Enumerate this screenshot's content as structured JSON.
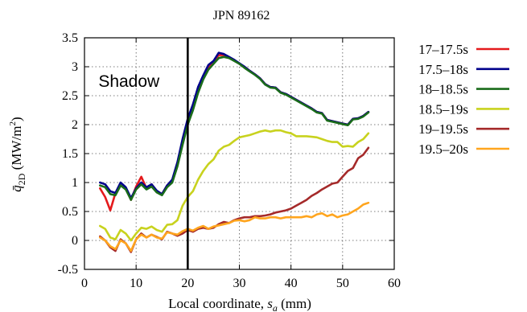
{
  "chart_data": {
    "type": "line",
    "title": "JPN 89162",
    "xlabel": "Local coordinate, s_a (mm)",
    "xlabel_parts": {
      "main": "Local coordinate, ",
      "var": "s",
      "sub": "a",
      "unit": " (mm)"
    },
    "ylabel": "q̄_2D (MW/m²)",
    "ylabel_parts": {
      "var": "q̄",
      "sub": "2D",
      "unit_open": " (MW/m",
      "sup": "2",
      "unit_close": ")"
    },
    "xlim": [
      0,
      60
    ],
    "ylim": [
      -0.5,
      3.5
    ],
    "xticks": [
      "0",
      "10",
      "20",
      "30",
      "40",
      "50",
      "60"
    ],
    "yticks": [
      "-0.5",
      "0",
      "0.5",
      "1",
      "1.5",
      "2",
      "2.5",
      "3",
      "3.5"
    ],
    "grid": true,
    "legend_position": "right, outside",
    "annotations": [
      {
        "text": "Shadow",
        "x": 2.7,
        "y": 2.75
      }
    ],
    "vlines": [
      {
        "x": 20,
        "color": "#000000"
      }
    ],
    "series": [
      {
        "name": "17–17.5s",
        "color": "#e41a1c",
        "x": [
          3,
          4,
          5,
          6,
          7,
          8,
          9,
          10,
          11,
          12,
          13,
          14,
          15,
          16,
          17,
          18,
          19,
          20,
          21,
          22,
          23,
          24,
          25,
          26,
          27,
          28,
          29,
          30,
          31,
          32,
          33,
          34,
          35,
          36,
          37,
          38,
          39,
          40,
          41,
          42,
          43,
          44,
          45,
          46,
          47,
          48,
          49,
          50,
          51,
          52,
          53,
          54,
          55
        ],
        "y": [
          0.9,
          0.75,
          0.52,
          0.82,
          0.95,
          0.9,
          0.7,
          0.93,
          1.1,
          0.9,
          0.97,
          0.85,
          0.8,
          0.95,
          1.02,
          1.3,
          1.7,
          2.05,
          2.3,
          2.6,
          2.8,
          3.0,
          3.1,
          3.2,
          3.2,
          3.16,
          3.12,
          3.05,
          3.0,
          2.93,
          2.87,
          2.8,
          2.7,
          2.65,
          2.64,
          2.56,
          2.53,
          2.48,
          2.43,
          2.38,
          2.33,
          2.28,
          2.22,
          2.2,
          2.08,
          2.06,
          2.04,
          2.02,
          2.0,
          2.1,
          2.11,
          2.15,
          2.22
        ]
      },
      {
        "name": "17.5–18s",
        "color": "#00008b",
        "x": [
          3,
          4,
          5,
          6,
          7,
          8,
          9,
          10,
          11,
          12,
          13,
          14,
          15,
          16,
          17,
          18,
          19,
          20,
          21,
          22,
          23,
          24,
          25,
          26,
          27,
          28,
          29,
          30,
          31,
          32,
          33,
          34,
          35,
          36,
          37,
          38,
          39,
          40,
          41,
          42,
          43,
          44,
          45,
          46,
          47,
          48,
          49,
          50,
          51,
          52,
          53,
          54,
          55
        ],
        "y": [
          1.0,
          0.97,
          0.85,
          0.82,
          1.0,
          0.92,
          0.73,
          0.9,
          1.0,
          0.92,
          0.97,
          0.86,
          0.8,
          0.95,
          1.05,
          1.35,
          1.75,
          2.1,
          2.35,
          2.65,
          2.85,
          3.03,
          3.1,
          3.24,
          3.22,
          3.17,
          3.12,
          3.06,
          3.0,
          2.93,
          2.87,
          2.8,
          2.7,
          2.65,
          2.64,
          2.56,
          2.53,
          2.48,
          2.43,
          2.38,
          2.33,
          2.28,
          2.22,
          2.2,
          2.08,
          2.06,
          2.04,
          2.02,
          2.0,
          2.1,
          2.11,
          2.15,
          2.22
        ]
      },
      {
        "name": "18–18.5s",
        "color": "#1a6b1a",
        "x": [
          3,
          4,
          5,
          6,
          7,
          8,
          9,
          10,
          11,
          12,
          13,
          14,
          15,
          16,
          17,
          18,
          19,
          20,
          21,
          22,
          23,
          24,
          25,
          26,
          27,
          28,
          29,
          30,
          31,
          32,
          33,
          34,
          35,
          36,
          37,
          38,
          39,
          40,
          41,
          42,
          43,
          44,
          45,
          46,
          47,
          48,
          49,
          50,
          51,
          52,
          53,
          54,
          55
        ],
        "y": [
          0.95,
          0.92,
          0.8,
          0.78,
          0.95,
          0.88,
          0.7,
          0.88,
          0.97,
          0.88,
          0.93,
          0.83,
          0.78,
          0.92,
          1.0,
          1.28,
          1.65,
          2.0,
          2.25,
          2.55,
          2.78,
          2.95,
          3.05,
          3.15,
          3.17,
          3.15,
          3.1,
          3.05,
          2.98,
          2.92,
          2.86,
          2.79,
          2.69,
          2.64,
          2.63,
          2.55,
          2.52,
          2.47,
          2.42,
          2.37,
          2.32,
          2.27,
          2.21,
          2.19,
          2.07,
          2.05,
          2.03,
          2.01,
          1.99,
          2.09,
          2.1,
          2.14,
          2.21
        ]
      },
      {
        "name": "18.5–19s",
        "color": "#c8d21e",
        "x": [
          3,
          4,
          5,
          6,
          7,
          8,
          9,
          10,
          11,
          12,
          13,
          14,
          15,
          16,
          17,
          18,
          19,
          20,
          21,
          22,
          23,
          24,
          25,
          26,
          27,
          28,
          29,
          30,
          31,
          32,
          33,
          34,
          35,
          36,
          37,
          38,
          39,
          40,
          41,
          42,
          43,
          44,
          45,
          46,
          47,
          48,
          49,
          50,
          51,
          52,
          53,
          54,
          55
        ],
        "y": [
          0.25,
          0.2,
          0.05,
          0.02,
          0.18,
          0.12,
          0.0,
          0.12,
          0.22,
          0.2,
          0.24,
          0.18,
          0.15,
          0.27,
          0.28,
          0.35,
          0.6,
          0.75,
          0.85,
          1.05,
          1.2,
          1.32,
          1.4,
          1.55,
          1.62,
          1.65,
          1.72,
          1.78,
          1.8,
          1.82,
          1.85,
          1.88,
          1.9,
          1.88,
          1.9,
          1.9,
          1.87,
          1.85,
          1.8,
          1.8,
          1.8,
          1.79,
          1.78,
          1.75,
          1.72,
          1.7,
          1.7,
          1.62,
          1.63,
          1.62,
          1.7,
          1.75,
          1.85
        ]
      },
      {
        "name": "19–19.5s",
        "color": "#a52a2a",
        "x": [
          3,
          4,
          5,
          6,
          7,
          8,
          9,
          10,
          11,
          12,
          13,
          14,
          15,
          16,
          17,
          18,
          19,
          20,
          21,
          22,
          23,
          24,
          25,
          26,
          27,
          28,
          29,
          30,
          31,
          32,
          33,
          34,
          35,
          36,
          37,
          38,
          39,
          40,
          41,
          42,
          43,
          44,
          45,
          46,
          47,
          48,
          49,
          50,
          51,
          52,
          53,
          54,
          55
        ],
        "y": [
          0.07,
          0.0,
          -0.12,
          -0.18,
          0.02,
          -0.05,
          -0.2,
          0.02,
          0.12,
          0.05,
          0.1,
          0.06,
          0.02,
          0.15,
          0.12,
          0.08,
          0.12,
          0.18,
          0.15,
          0.2,
          0.22,
          0.2,
          0.22,
          0.28,
          0.32,
          0.3,
          0.35,
          0.38,
          0.4,
          0.4,
          0.42,
          0.42,
          0.43,
          0.45,
          0.48,
          0.5,
          0.52,
          0.55,
          0.6,
          0.65,
          0.7,
          0.77,
          0.82,
          0.88,
          0.93,
          0.98,
          1.0,
          1.1,
          1.2,
          1.25,
          1.42,
          1.48,
          1.6
        ]
      },
      {
        "name": "19.5–20s",
        "color": "#ffa51e",
        "x": [
          3,
          4,
          5,
          6,
          7,
          8,
          9,
          10,
          11,
          12,
          13,
          14,
          15,
          16,
          17,
          18,
          19,
          20,
          21,
          22,
          23,
          24,
          25,
          26,
          27,
          28,
          29,
          30,
          31,
          32,
          33,
          34,
          35,
          36,
          37,
          38,
          39,
          40,
          41,
          42,
          43,
          44,
          45,
          46,
          47,
          48,
          49,
          50,
          51,
          52,
          53,
          54,
          55
        ],
        "y": [
          0.05,
          0.0,
          -0.1,
          -0.15,
          0.0,
          -0.05,
          -0.18,
          0.02,
          0.1,
          0.05,
          0.1,
          0.05,
          0.03,
          0.14,
          0.12,
          0.1,
          0.16,
          0.2,
          0.17,
          0.22,
          0.25,
          0.2,
          0.24,
          0.26,
          0.28,
          0.3,
          0.34,
          0.35,
          0.33,
          0.35,
          0.4,
          0.38,
          0.38,
          0.4,
          0.4,
          0.38,
          0.4,
          0.4,
          0.4,
          0.4,
          0.42,
          0.4,
          0.45,
          0.47,
          0.42,
          0.45,
          0.4,
          0.43,
          0.45,
          0.5,
          0.55,
          0.62,
          0.65
        ]
      }
    ]
  }
}
